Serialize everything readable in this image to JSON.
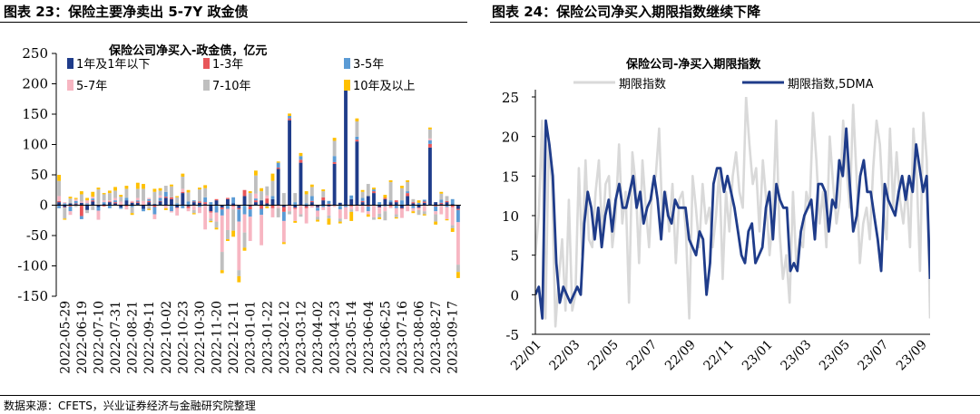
{
  "left_panel": {
    "title": "图表 23：保险主要净卖出 5-7Y 政金债"
  },
  "right_panel": {
    "title": "图表 24：保险公司净买入期限指数继续下降"
  },
  "source": "数据来源：CFETS，兴业证券经济与金融研究院整理",
  "colors": {
    "1y_below": "#1F3C8A",
    "1_3y": "#E8565A",
    "3_5y": "#5B9BD5",
    "5_7y": "#F7B6C2",
    "7_10y": "#BFBFBF",
    "10y_plus": "#FFC000",
    "index_raw": "#D9D9D9",
    "index_5dma": "#1F3C8A"
  },
  "chart_data": [
    {
      "type": "bar",
      "stacked": true,
      "title": "保险公司净买入-政金债，亿元",
      "ylim": [
        -150,
        250
      ],
      "yticks": [
        -150,
        -100,
        -50,
        0,
        50,
        100,
        150,
        200,
        250
      ],
      "xtick_labels": [
        "2022-05-29",
        "2022-06-19",
        "2022-07-10",
        "2022-07-31",
        "2022-08-21",
        "2022-09-11",
        "2022-10-02",
        "2022-10-23",
        "2022-10-30",
        "2022-11-20",
        "2022-12-11",
        "2023-01-01",
        "2023-01-22",
        "2023-02-12",
        "2023-03-12",
        "2023-04-02",
        "2023-04-23",
        "2023-05-14",
        "2023-06-04",
        "2023-06-25",
        "2023-07-16",
        "2023-08-06",
        "2023-08-27",
        "2023-09-17"
      ],
      "legend_position": "top-left",
      "series": [
        {
          "name": "1年及1年以下",
          "color": "#1F3C8A",
          "values": [
            5,
            -3,
            3,
            2,
            4,
            -8,
            6,
            -3,
            2,
            5,
            3,
            -4,
            8,
            4,
            4,
            -6,
            5,
            2,
            6,
            12,
            10,
            -4,
            20,
            -2,
            5,
            4,
            2,
            -10,
            8,
            -4,
            10,
            3,
            -5,
            15,
            -2,
            5,
            8,
            3,
            10,
            60,
            -3,
            140,
            -4,
            70,
            -2,
            5,
            -3,
            8,
            -2,
            68,
            4,
            190,
            10,
            105,
            5,
            15,
            20,
            -3,
            10,
            5,
            5,
            -5,
            15,
            3,
            -4,
            4,
            95,
            5,
            2,
            5,
            2,
            -6
          ]
        },
        {
          "name": "1-3年",
          "color": "#E8565A",
          "values": [
            2,
            -1,
            -2,
            1,
            -18,
            1,
            2,
            1,
            -2,
            1,
            2,
            1,
            -2,
            1,
            2,
            1,
            2,
            -3,
            1,
            2,
            3,
            -1,
            2,
            -3,
            1,
            2,
            3,
            -2,
            2,
            -3,
            2,
            -2,
            -2,
            10,
            -5,
            3,
            -6,
            8,
            -5,
            2,
            -8,
            3,
            -2,
            5,
            -3,
            2,
            -1,
            5,
            2,
            3,
            -1,
            5,
            -2,
            3,
            2,
            -2,
            3,
            -1,
            2,
            -2,
            3,
            -1,
            5,
            2,
            -1,
            2,
            6,
            -2,
            2,
            2,
            -3,
            -2
          ]
        },
        {
          "name": "3-5年",
          "color": "#5B9BD5",
          "values": [
            -5,
            3,
            -8,
            4,
            -5,
            2,
            3,
            -6,
            3,
            -5,
            3,
            -2,
            4,
            -3,
            2,
            -4,
            3,
            -12,
            5,
            8,
            -10,
            3,
            -5,
            6,
            2,
            -3,
            8,
            5,
            -12,
            -10,
            -6,
            10,
            -20,
            -15,
            -12,
            3,
            -10,
            -2,
            5,
            8,
            -15,
            4,
            5,
            6,
            3,
            8,
            -5,
            -3,
            5,
            10,
            -6,
            -3,
            6,
            5,
            5,
            -8,
            3,
            5,
            -2,
            3,
            -5,
            8,
            3,
            -5,
            4,
            3,
            6,
            -8,
            5,
            -3,
            8,
            -20
          ]
        },
        {
          "name": "5-7年",
          "color": "#F7B6C2",
          "values": [
            8,
            2,
            -6,
            3,
            2,
            5,
            3,
            -15,
            3,
            2,
            4,
            5,
            -5,
            2,
            4,
            6,
            2,
            -8,
            4,
            -5,
            -2,
            -12,
            5,
            -5,
            -8,
            -10,
            -40,
            -10,
            -15,
            -60,
            -35,
            -5,
            -80,
            -30,
            -40,
            8,
            -50,
            5,
            -15,
            -5,
            -35,
            -10,
            -20,
            -15,
            -25,
            -4,
            -10,
            -5,
            -15,
            -3,
            -15,
            -20,
            -5,
            -10,
            -12,
            -5,
            -20,
            -10,
            -8,
            -3,
            -10,
            -15,
            -10,
            -5,
            -3,
            -10,
            3,
            -5,
            -15,
            -20,
            -30,
            -70
          ]
        },
        {
          "name": "7-10年",
          "color": "#BFBFBF",
          "values": [
            25,
            -18,
            8,
            -3,
            12,
            -5,
            -8,
            25,
            10,
            12,
            12,
            8,
            15,
            -10,
            15,
            20,
            -6,
            20,
            8,
            10,
            18,
            10,
            20,
            15,
            -5,
            20,
            15,
            -4,
            -10,
            -30,
            -15,
            -35,
            -10,
            -25,
            20,
            30,
            15,
            15,
            25,
            -15,
            20,
            -5,
            15,
            -4,
            15,
            15,
            -5,
            10,
            -5,
            25,
            -5,
            5,
            -4,
            25,
            10,
            20,
            -4,
            -6,
            -15,
            30,
            -5,
            20,
            15,
            5,
            -8,
            -5,
            15,
            -12,
            10,
            8,
            -5,
            -12
          ]
        },
        {
          "name": "10年及以上",
          "color": "#FFC000",
          "values": [
            10,
            -2,
            3,
            2,
            5,
            4,
            8,
            3,
            2,
            4,
            6,
            3,
            5,
            -3,
            10,
            8,
            -2,
            5,
            4,
            -3,
            3,
            2,
            5,
            4,
            -2,
            3,
            5,
            -2,
            -3,
            -5,
            -3,
            -10,
            -10,
            -5,
            3,
            8,
            5,
            -3,
            12,
            2,
            -3,
            4,
            -3,
            5,
            5,
            4,
            -3,
            3,
            -10,
            5,
            -3,
            6,
            -15,
            5,
            3,
            -4,
            3,
            -3,
            5,
            3,
            -2,
            4,
            3,
            -3,
            4,
            -2,
            3,
            -5,
            3,
            -2,
            -6,
            -10
          ]
        }
      ]
    },
    {
      "type": "line",
      "title": "保险公司-净买入期限指数",
      "ylim": [
        -5,
        25
      ],
      "yticks": [
        -5,
        0,
        5,
        10,
        15,
        20,
        25
      ],
      "xtick_labels": [
        "22/01",
        "22/03",
        "22/05",
        "22/07",
        "22/09",
        "22/11",
        "23/01",
        "23/03",
        "23/05",
        "23/07",
        "23/09"
      ],
      "legend_position": "top",
      "series": [
        {
          "name": "期限指数",
          "color": "#D9D9D9",
          "values": [
            5,
            10,
            22,
            -3,
            19,
            14,
            -4,
            2,
            7,
            -2,
            12,
            -2,
            0,
            16,
            5,
            17,
            7,
            6,
            13,
            17,
            7,
            14,
            15,
            6,
            10,
            19,
            9,
            13,
            -1,
            18,
            14,
            4,
            17,
            11,
            6,
            14,
            15,
            21,
            9,
            13,
            8,
            14,
            4,
            12,
            13,
            8,
            -3,
            15,
            11,
            6,
            14,
            9,
            11,
            6,
            10,
            16,
            2,
            13,
            8,
            15,
            18,
            13,
            11,
            25,
            19,
            14,
            16,
            8,
            17,
            12,
            5,
            10,
            22,
            8,
            2,
            5,
            -1,
            13,
            4,
            7,
            6,
            13,
            11,
            23,
            17,
            9,
            13,
            6,
            20,
            14,
            9,
            12,
            22,
            16,
            11,
            24,
            15,
            4,
            9,
            11,
            7,
            16,
            22,
            19,
            11,
            7,
            21,
            11,
            18,
            12,
            9,
            14,
            6,
            21,
            15,
            3,
            23,
            17,
            -3
          ]
        },
        {
          "name": "期限指数,5DMA",
          "color": "#1F3C8A",
          "values": [
            0,
            1,
            -3,
            22,
            19,
            15,
            4,
            -1,
            1,
            0,
            -1,
            0,
            1,
            0,
            9,
            13,
            11,
            7,
            11,
            6,
            10,
            12,
            8,
            12,
            14,
            11,
            11,
            13,
            15,
            11,
            13,
            9,
            11,
            12,
            15,
            12,
            7,
            13,
            10,
            9,
            12,
            11,
            11,
            11,
            7,
            6,
            5,
            8,
            7,
            0,
            4,
            14,
            16,
            16,
            13,
            15,
            13,
            11,
            8,
            5,
            4,
            8,
            9,
            4,
            5,
            6,
            11,
            13,
            7,
            14,
            12,
            11,
            11,
            3,
            4,
            3,
            8,
            10,
            11,
            12,
            7,
            14,
            14,
            13,
            8,
            12,
            11,
            17,
            15,
            21,
            14,
            8,
            10,
            15,
            17,
            13,
            13,
            10,
            7,
            3,
            14,
            12,
            11,
            10,
            13,
            15,
            12,
            15,
            13,
            19,
            16,
            13,
            15,
            2
          ]
        }
      ]
    }
  ]
}
